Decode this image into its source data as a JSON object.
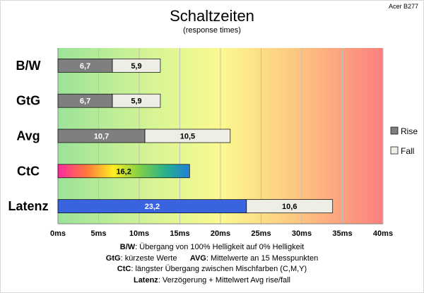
{
  "corner_label": "Acer B277",
  "chart_data": {
    "type": "bar",
    "orientation": "horizontal",
    "stacked": true,
    "title": "Schaltzeiten",
    "subtitle": "(response times)",
    "categories": [
      "B/W",
      "GtG",
      "Avg",
      "CtC",
      "Latenz"
    ],
    "series": [
      {
        "name": "Rise",
        "values": [
          6.7,
          6.7,
          10.7,
          null,
          null
        ]
      },
      {
        "name": "Fall",
        "values": [
          5.9,
          5.9,
          10.5,
          null,
          10.6
        ]
      }
    ],
    "extra_bars": [
      {
        "category": "CtC",
        "value": 16.2,
        "label": "16,2",
        "fill": "rainbow"
      },
      {
        "category": "Latenz",
        "value": 23.2,
        "label": "23,2",
        "fill": "blue"
      }
    ],
    "data_labels": {
      "B/W": [
        "6,7",
        "5,9"
      ],
      "GtG": [
        "6,7",
        "5,9"
      ],
      "Avg": [
        "10,7",
        "10,5"
      ],
      "Latenz_fall": "10,6"
    },
    "xlim": [
      0,
      40
    ],
    "x_ticks": [
      "0ms",
      "5ms",
      "10ms",
      "15ms",
      "20ms",
      "25ms",
      "30ms",
      "35ms",
      "40ms"
    ],
    "grid": true,
    "legend_position": "right",
    "colors": {
      "rise": "#7f7f7f",
      "fall": "#efeee6",
      "latenz_bar": "#3a63e0",
      "background_gradient": [
        "#9be39a",
        "#fbf98f",
        "#fc7f7f"
      ]
    }
  },
  "notes": {
    "line1_bold": "B/W",
    "line1_text": ":  Übergang von 100% Helligkeit auf 0% Helligkeit",
    "line2a_bold": "GtG",
    "line2a_text": ": kürzeste  Werte",
    "line2b_bold": "AVG",
    "line2b_text": ": Mittelwerte  an 15 Messpunkten",
    "line3_bold": "CtC",
    "line3_text": ": längster Übergang  zwischen Mischfarben  (C,M,Y)",
    "line4_bold": "Latenz",
    "line4_text": ": Verzögerung  + Mittelwert  Avg rise/fall"
  }
}
